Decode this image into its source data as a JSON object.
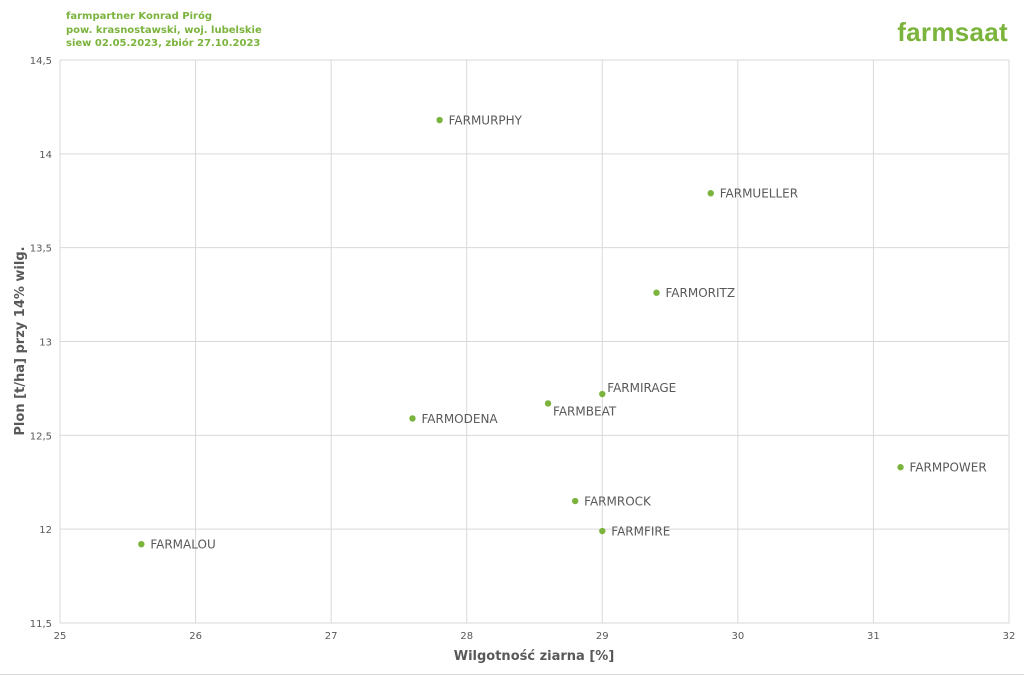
{
  "header": {
    "line1": "farmpartner Konrad Piróg",
    "line2": "pow. krasnostawski, woj. lubelskie",
    "line3": "siew 02.05.2023, zbiór 27.10.2023"
  },
  "logo": "farmsaat",
  "colors": {
    "accent": "#7bb43c",
    "grid": "#d9d9d9",
    "text": "#595959"
  },
  "chart_data": {
    "type": "scatter",
    "xlabel": "Wilgotność ziarna [%]",
    "ylabel": "Plon [t/ha] przy 14% wilg.",
    "xlim": [
      25,
      32
    ],
    "ylim": [
      11.5,
      14.5
    ],
    "x_ticks": [
      "25",
      "26",
      "27",
      "28",
      "29",
      "30",
      "31",
      "32"
    ],
    "y_ticks": [
      "11,5",
      "12",
      "12,5",
      "13",
      "13,5",
      "14",
      "14,5"
    ],
    "grid": true,
    "points": [
      {
        "label": "FARMURPHY",
        "x": 27.8,
        "y": 14.18,
        "label_pos": "right"
      },
      {
        "label": "FARMUELLER",
        "x": 29.8,
        "y": 13.79,
        "label_pos": "right"
      },
      {
        "label": "FARMORITZ",
        "x": 29.4,
        "y": 13.26,
        "label_pos": "right"
      },
      {
        "label": "FARMIRAGE",
        "x": 29.0,
        "y": 12.72,
        "label_pos": "above-right"
      },
      {
        "label": "FARMBEAT",
        "x": 28.6,
        "y": 12.67,
        "label_pos": "below-right"
      },
      {
        "label": "FARMODENA",
        "x": 27.6,
        "y": 12.59,
        "label_pos": "right"
      },
      {
        "label": "FARMPOWER",
        "x": 31.2,
        "y": 12.33,
        "label_pos": "right"
      },
      {
        "label": "FARMROCK",
        "x": 28.8,
        "y": 12.15,
        "label_pos": "right"
      },
      {
        "label": "FARMFIRE",
        "x": 29.0,
        "y": 11.99,
        "label_pos": "right"
      },
      {
        "label": "FARMALOU",
        "x": 25.6,
        "y": 11.92,
        "label_pos": "right"
      }
    ]
  }
}
